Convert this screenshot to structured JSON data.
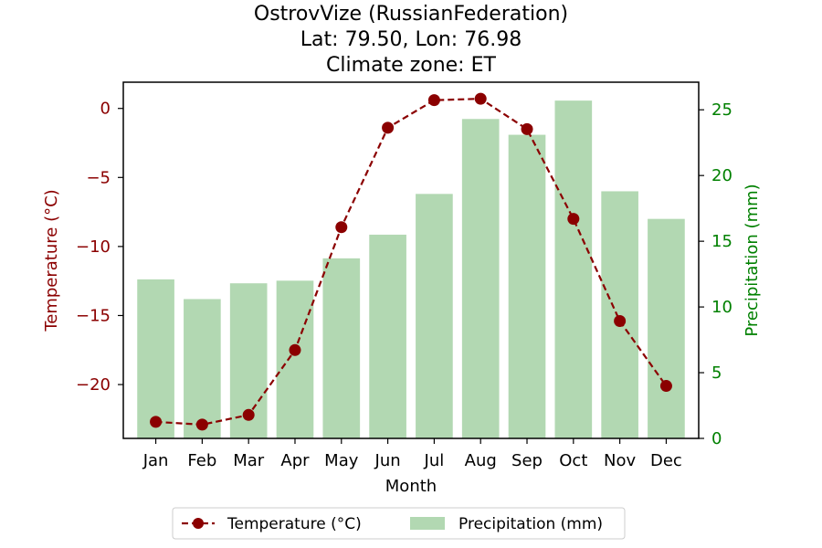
{
  "chart_data": {
    "type": "bar+line",
    "title": {
      "line1": "OstrovVize (RussianFederation)",
      "line2": "Lat: 79.50, Lon: 76.98",
      "line3": "Climate zone: ET"
    },
    "xlabel": "Month",
    "ylabel_left": "Temperature (°C)",
    "ylabel_right": "Precipitation (mm)",
    "categories": [
      "Jan",
      "Feb",
      "Mar",
      "Apr",
      "May",
      "Jun",
      "Jul",
      "Aug",
      "Sep",
      "Oct",
      "Nov",
      "Dec"
    ],
    "series": [
      {
        "name": "Temperature (°C)",
        "type": "line",
        "axis": "left",
        "values": [
          -22.7,
          -22.9,
          -22.2,
          -17.5,
          -8.6,
          -1.4,
          0.6,
          0.7,
          -1.5,
          -8.0,
          -15.4,
          -20.1
        ]
      },
      {
        "name": "Precipitation (mm)",
        "type": "bar",
        "axis": "right",
        "values": [
          12.1,
          10.6,
          11.8,
          12.0,
          13.7,
          15.5,
          18.6,
          24.3,
          23.1,
          25.7,
          18.8,
          16.7
        ]
      }
    ],
    "ylim_left": [
      -23.9,
      1.9
    ],
    "ylim_right": [
      0,
      27.1
    ],
    "yticks_left": [
      0,
      -5,
      -10,
      -15,
      -20
    ],
    "ytick_labels_left": [
      "0",
      "−5",
      "−10",
      "−15",
      "−20"
    ],
    "yticks_right": [
      0,
      5,
      10,
      15,
      20,
      25
    ],
    "ytick_labels_right": [
      "0",
      "5",
      "10",
      "15",
      "20",
      "25"
    ],
    "legend_position": "bottom-center",
    "grid": false,
    "colors": {
      "temperature": "#8b0000",
      "precipitation": "#b2d8b2",
      "right_axis": "#008000"
    }
  }
}
